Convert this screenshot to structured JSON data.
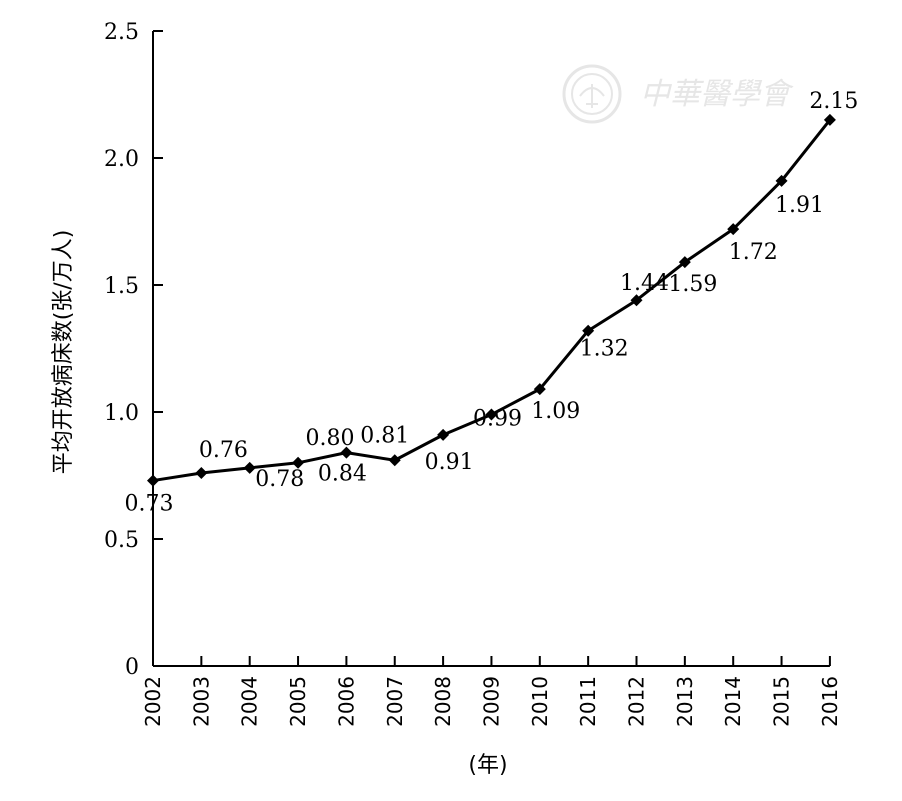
{
  "chart_data": {
    "type": "line",
    "ylabel": "平均开放病床数(张/万人)",
    "xlabel": "(年)",
    "ylim": [
      0,
      2.5
    ],
    "y_ticks": [
      "0",
      "0.5",
      "1.0",
      "1.5",
      "2.0",
      "2.5"
    ],
    "y_tick_values": [
      0,
      0.5,
      1.0,
      1.5,
      2.0,
      2.5
    ],
    "categories": [
      "2002",
      "2003",
      "2004",
      "2005",
      "2006",
      "2007",
      "2008",
      "2009",
      "2010",
      "2011",
      "2012",
      "2013",
      "2014",
      "2015",
      "2016"
    ],
    "series": [
      {
        "values": [
          0.73,
          0.76,
          0.78,
          0.8,
          0.84,
          0.81,
          0.91,
          0.99,
          1.09,
          1.32,
          1.44,
          1.59,
          1.72,
          1.91,
          2.15
        ],
        "labels": [
          "0.73",
          "0.76",
          "0.78",
          "0.80",
          "0.84",
          "0.81",
          "0.91",
          "0.99",
          "1.09",
          "1.32",
          "1.44",
          "1.59",
          "1.72",
          "1.91",
          "2.15"
        ],
        "color": "#000000",
        "marker": "diamond"
      }
    ],
    "grid": false,
    "legend": "none"
  },
  "watermark": {
    "text": "中華醫學會",
    "color": "#e6e6e6"
  }
}
